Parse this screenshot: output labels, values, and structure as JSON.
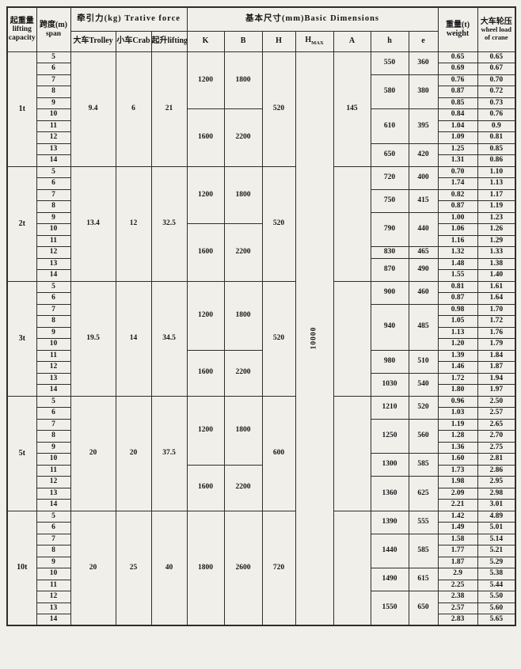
{
  "colors": {
    "paper": "#f1efea",
    "ink": "#161616",
    "line": "#2e2d2b"
  },
  "header": {
    "capacity": {
      "zh": "起重量",
      "en1": "lifting",
      "en2": "capacity"
    },
    "span": {
      "zh": "跨度(m)",
      "en": "span"
    },
    "traction": {
      "group": "牵引力(kg) Trative force",
      "trolley": "大车Trolley",
      "crab": "小车Crab",
      "lifting": "起升lifting"
    },
    "dimensions": {
      "group": "基本尺寸(mm)Basic Dimensions",
      "k": "K",
      "b": "B",
      "h": "H",
      "hmax_base": "H",
      "hmax_sub": "MAX",
      "a": "A",
      "h2": "h",
      "e": "e"
    },
    "weight": {
      "zh": "重量(t)",
      "en": "weight"
    },
    "wheel": {
      "zh": "大车轮压",
      "en1": "wheel load",
      "en2": "of crane"
    }
  },
  "hmax_value": "10000",
  "groups": [
    {
      "capacity": "1t",
      "trolley": "9.4",
      "crab": "6",
      "lifting": "21",
      "H": "520",
      "A": "145",
      "kb": [
        {
          "k": "1200",
          "b": "1800",
          "rows": 5
        },
        {
          "k": "1600",
          "b": "2200",
          "rows": 5
        }
      ],
      "he": [
        {
          "h": "550",
          "e": "360",
          "rows": 2
        },
        {
          "h": "580",
          "e": "380",
          "rows": 3
        },
        {
          "h": "610",
          "e": "395",
          "rows": 3
        },
        {
          "h": "650",
          "e": "420",
          "rows": 2
        }
      ],
      "rows": [
        {
          "span": "5",
          "weight": "0.65",
          "wheel": "0.65"
        },
        {
          "span": "6",
          "weight": "0.69",
          "wheel": "0.67"
        },
        {
          "span": "7",
          "weight": "0.76",
          "wheel": "0.70"
        },
        {
          "span": "8",
          "weight": "0.87",
          "wheel": "0.72"
        },
        {
          "span": "9",
          "weight": "0.85",
          "wheel": "0.73"
        },
        {
          "span": "10",
          "weight": "0.84",
          "wheel": "0.76"
        },
        {
          "span": "11",
          "weight": "1.04",
          "wheel": "0.9"
        },
        {
          "span": "12",
          "weight": "1.09",
          "wheel": "0.81"
        },
        {
          "span": "13",
          "weight": "1.25",
          "wheel": "0.85"
        },
        {
          "span": "14",
          "weight": "1.31",
          "wheel": "0.86"
        }
      ]
    },
    {
      "capacity": "2t",
      "trolley": "13.4",
      "crab": "12",
      "lifting": "32.5",
      "H": "520",
      "A": "",
      "kb": [
        {
          "k": "1200",
          "b": "1800",
          "rows": 5
        },
        {
          "k": "1600",
          "b": "2200",
          "rows": 5
        }
      ],
      "he": [
        {
          "h": "720",
          "e": "400",
          "rows": 2
        },
        {
          "h": "750",
          "e": "415",
          "rows": 2
        },
        {
          "h": "790",
          "e": "440",
          "rows": 3
        },
        {
          "h": "830",
          "e": "465",
          "rows": 1
        },
        {
          "h": "870",
          "e": "490",
          "rows": 2
        }
      ],
      "rows": [
        {
          "span": "5",
          "weight": "0.70",
          "wheel": "1.10"
        },
        {
          "span": "6",
          "weight": "1.74",
          "wheel": "1.13"
        },
        {
          "span": "7",
          "weight": "0.82",
          "wheel": "1.17"
        },
        {
          "span": "8",
          "weight": "0.87",
          "wheel": "1.19"
        },
        {
          "span": "9",
          "weight": "1.00",
          "wheel": "1.23"
        },
        {
          "span": "10",
          "weight": "1.06",
          "wheel": "1.26"
        },
        {
          "span": "11",
          "weight": "1.16",
          "wheel": "1.29"
        },
        {
          "span": "12",
          "weight": "1.32",
          "wheel": "1.33"
        },
        {
          "span": "13",
          "weight": "1.48",
          "wheel": "1.38"
        },
        {
          "span": "14",
          "weight": "1.55",
          "wheel": "1.40"
        }
      ]
    },
    {
      "capacity": "3t",
      "trolley": "19.5",
      "crab": "14",
      "lifting": "34.5",
      "H": "520",
      "A": "",
      "kb": [
        {
          "k": "1200",
          "b": "1800",
          "rows": 6
        },
        {
          "k": "1600",
          "b": "2200",
          "rows": 4
        }
      ],
      "he": [
        {
          "h": "900",
          "e": "460",
          "rows": 2
        },
        {
          "h": "940",
          "e": "485",
          "rows": 4
        },
        {
          "h": "980",
          "e": "510",
          "rows": 2
        },
        {
          "h": "1030",
          "e": "540",
          "rows": 2
        }
      ],
      "rows": [
        {
          "span": "5",
          "weight": "0.81",
          "wheel": "1.61"
        },
        {
          "span": "6",
          "weight": "0.87",
          "wheel": "1.64"
        },
        {
          "span": "7",
          "weight": "0.98",
          "wheel": "1.70"
        },
        {
          "span": "8",
          "weight": "1.05",
          "wheel": "1.72"
        },
        {
          "span": "9",
          "weight": "1.13",
          "wheel": "1.76"
        },
        {
          "span": "10",
          "weight": "1.20",
          "wheel": "1.79"
        },
        {
          "span": "11",
          "weight": "1.39",
          "wheel": "1.84"
        },
        {
          "span": "12",
          "weight": "1.46",
          "wheel": "1.87"
        },
        {
          "span": "13",
          "weight": "1.72",
          "wheel": "1.94"
        },
        {
          "span": "14",
          "weight": "1.80",
          "wheel": "1.97"
        }
      ]
    },
    {
      "capacity": "5t",
      "trolley": "20",
      "crab": "20",
      "lifting": "37.5",
      "H": "600",
      "A": "",
      "kb": [
        {
          "k": "1200",
          "b": "1800",
          "rows": 6
        },
        {
          "k": "1600",
          "b": "2200",
          "rows": 4
        }
      ],
      "he": [
        {
          "h": "1210",
          "e": "520",
          "rows": 2
        },
        {
          "h": "1250",
          "e": "560",
          "rows": 3
        },
        {
          "h": "1300",
          "e": "585",
          "rows": 2
        },
        {
          "h": "1360",
          "e": "625",
          "rows": 3
        }
      ],
      "rows": [
        {
          "span": "5",
          "weight": "0.96",
          "wheel": "2.50"
        },
        {
          "span": "6",
          "weight": "1.03",
          "wheel": "2.57"
        },
        {
          "span": "7",
          "weight": "1.19",
          "wheel": "2.65"
        },
        {
          "span": "8",
          "weight": "1.28",
          "wheel": "2.70"
        },
        {
          "span": "9",
          "weight": "1.36",
          "wheel": "2.75"
        },
        {
          "span": "10",
          "weight": "1.60",
          "wheel": "2.81"
        },
        {
          "span": "11",
          "weight": "1.73",
          "wheel": "2.86"
        },
        {
          "span": "12",
          "weight": "1.98",
          "wheel": "2.95"
        },
        {
          "span": "13",
          "weight": "2.09",
          "wheel": "2.98"
        },
        {
          "span": "14",
          "weight": "2.21",
          "wheel": "3.01"
        }
      ]
    },
    {
      "capacity": "10t",
      "trolley": "20",
      "crab": "25",
      "lifting": "40",
      "H": "720",
      "A": "",
      "kb": [
        {
          "k": "1800",
          "b": "2600",
          "rows": 10
        }
      ],
      "he": [
        {
          "h": "1390",
          "e": "555",
          "rows": 2
        },
        {
          "h": "1440",
          "e": "585",
          "rows": 3
        },
        {
          "h": "1490",
          "e": "615",
          "rows": 2
        },
        {
          "h": "1550",
          "e": "650",
          "rows": 3
        }
      ],
      "rows": [
        {
          "span": "5",
          "weight": "1.42",
          "wheel": "4.89"
        },
        {
          "span": "6",
          "weight": "1.49",
          "wheel": "5.01"
        },
        {
          "span": "7",
          "weight": "1.58",
          "wheel": "5.14"
        },
        {
          "span": "8",
          "weight": "1.77",
          "wheel": "5.21"
        },
        {
          "span": "9",
          "weight": "1.87",
          "wheel": "5.29"
        },
        {
          "span": "10",
          "weight": "2.9",
          "wheel": "5.38"
        },
        {
          "span": "11",
          "weight": "2.25",
          "wheel": "5.44"
        },
        {
          "span": "12",
          "weight": "2.38",
          "wheel": "5.50"
        },
        {
          "span": "13",
          "weight": "2.57",
          "wheel": "5.60"
        },
        {
          "span": "14",
          "weight": "2.83",
          "wheel": "5.65"
        }
      ]
    }
  ]
}
